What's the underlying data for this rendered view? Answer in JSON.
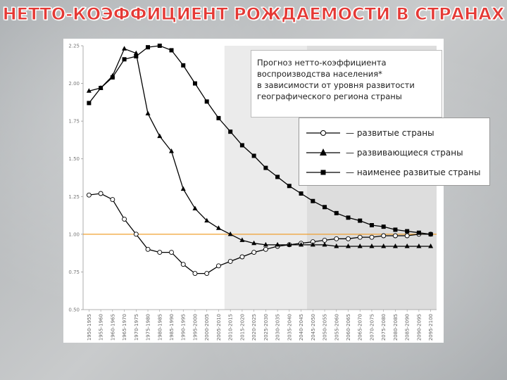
{
  "slide": {
    "title": "НЕТТО-КОЭФФИЦИЕНТ РОЖДАЕМОСТИ В СТРАНАХ"
  },
  "note": {
    "lines": [
      "Прогноз нетто-коэффициента",
      "воспроизводства населения*",
      "в зависимости от уровня развитости",
      "географического региона страны"
    ]
  },
  "colors": {
    "line": "#000000",
    "reference_line": "#f0a030",
    "forecast_band_1": "#ebebeb",
    "forecast_band_2": "#dddddd",
    "plot_bg": "#ffffff"
  },
  "chart_data": {
    "type": "line",
    "title": "",
    "xlabel": "",
    "ylabel": "",
    "ylim": [
      0.5,
      2.25
    ],
    "y_ticks": [
      "0.50",
      "0.75",
      "1.00",
      "1.25",
      "1.50",
      "1.75",
      "2.00",
      "2.25"
    ],
    "reference_line": 1.0,
    "grid": false,
    "legend_position": "top-right",
    "categories": [
      "1950-1955",
      "1955-1960",
      "1960-1965",
      "1965-1970",
      "1970-1975",
      "1975-1980",
      "1980-1985",
      "1985-1990",
      "1990-1995",
      "1995-2000",
      "2000-2005",
      "2005-2010",
      "2010-2015",
      "2015-2020",
      "2020-2025",
      "2025-2030",
      "2030-2035",
      "2035-2040",
      "2040-2045",
      "2045-2050",
      "2050-2055",
      "2055-2060",
      "2060-2065",
      "2065-2070",
      "2070-2075",
      "2075-2080",
      "2080-2085",
      "2085-2090",
      "2090-2095",
      "2095-2100"
    ],
    "series": [
      {
        "name": "развитые страны",
        "marker": "circle",
        "values": [
          1.26,
          1.27,
          1.23,
          1.1,
          1.0,
          0.9,
          0.88,
          0.88,
          0.8,
          0.74,
          0.74,
          0.79,
          0.82,
          0.85,
          0.88,
          0.9,
          0.92,
          0.93,
          0.94,
          0.95,
          0.96,
          0.97,
          0.97,
          0.98,
          0.98,
          0.99,
          0.99,
          0.99,
          1.0,
          1.0
        ]
      },
      {
        "name": "развивающиеся страны",
        "marker": "triangle",
        "values": [
          1.95,
          1.97,
          2.05,
          2.23,
          2.2,
          1.8,
          1.65,
          1.55,
          1.3,
          1.17,
          1.09,
          1.04,
          1.0,
          0.96,
          0.94,
          0.93,
          0.93,
          0.93,
          0.93,
          0.93,
          0.93,
          0.92,
          0.92,
          0.92,
          0.92,
          0.92,
          0.92,
          0.92,
          0.92,
          0.92
        ]
      },
      {
        "name": "наименее развитые страны",
        "marker": "square",
        "values": [
          1.87,
          1.97,
          2.04,
          2.16,
          2.18,
          2.24,
          2.25,
          2.22,
          2.12,
          2.0,
          1.88,
          1.77,
          1.68,
          1.59,
          1.52,
          1.44,
          1.38,
          1.32,
          1.27,
          1.22,
          1.18,
          1.14,
          1.11,
          1.09,
          1.06,
          1.05,
          1.03,
          1.02,
          1.01,
          1.0
        ]
      }
    ],
    "forecast_bands": [
      {
        "from": "2010-2015",
        "to": "2045-2050"
      },
      {
        "from": "2045-2050",
        "to": "2095-2100"
      }
    ]
  }
}
